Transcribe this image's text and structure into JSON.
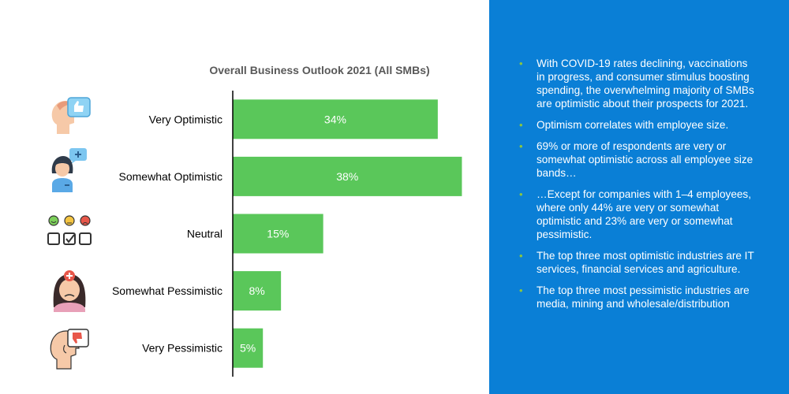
{
  "chart_data": {
    "type": "bar",
    "orientation": "horizontal",
    "title": "Overall Business Outlook 2021 (All SMBs)",
    "categories": [
      "Very Optimistic",
      "Somewhat Optimistic",
      "Neutral",
      "Somewhat Pessimistic",
      "Very Pessimistic"
    ],
    "values": [
      34,
      38,
      15,
      8,
      5
    ],
    "data_labels": [
      "34%",
      "38%",
      "15%",
      "8%",
      "5%"
    ],
    "unit": "%",
    "xlim": [
      0,
      42
    ],
    "bar_color": "#5ac75a",
    "label_color": "#ffffff",
    "grid": false,
    "legend": "none"
  },
  "icons": [
    "thumbs-up-head-icon",
    "woman-with-plus-chat-icon",
    "survey-faces-checklist-icon",
    "worried-woman-icon",
    "thumbs-down-head-icon"
  ],
  "colors": {
    "panel_bg": "#0a7fd6",
    "bullet_color": "#8cc63f",
    "bar": "#5ac75a"
  },
  "bullets": [
    "With COVID-19 rates declining, vaccinations in progress, and consumer stimulus boosting spending, the overwhelming majority of SMBs are optimistic about their prospects for 2021.",
    "Optimism correlates with employee size.",
    "69% or more of respondents are very or somewhat optimistic across all employee size bands…",
    "…Except for companies with 1–4 employees, where only 44% are very or somewhat optimistic and 23% are very or somewhat pessimistic.",
    "The top three most optimistic industries are IT services, financial services and agriculture.",
    "The top three most pessimistic industries are media, mining and wholesale/distribution"
  ],
  "bullet_symbol": "•"
}
